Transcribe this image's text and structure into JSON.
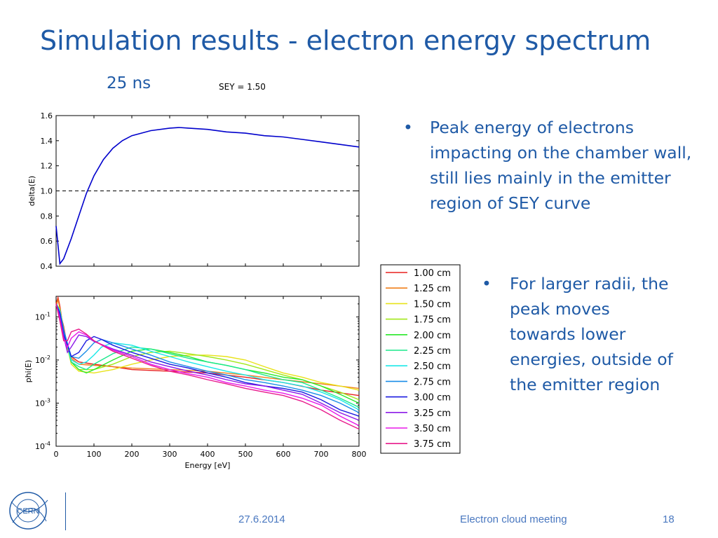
{
  "slide": {
    "title": "Simulation results - electron energy spectrum",
    "subtitle": "25 ns",
    "sey_label": "SEY = 1.50",
    "bullets": [
      "Peak energy of electrons impacting on the chamber wall, still lies mainly in the emitter region of SEY curve",
      "For larger radii, the peak moves towards lower energies, outside of the emitter region"
    ],
    "footer": {
      "date": "27.6.2014",
      "event": "Electron cloud meeting",
      "page": "18",
      "logo_text": "CERN"
    },
    "colors": {
      "title": "#1f5aa6",
      "footer": "#4a78c0"
    }
  },
  "chart_data": [
    {
      "type": "line",
      "ylabel": "delta(E)",
      "xlabel": "",
      "xlim": [
        0,
        800
      ],
      "ylim": [
        0.4,
        1.6
      ],
      "yticks": [
        "0.4",
        "0.6",
        "0.8",
        "1.0",
        "1.2",
        "1.4",
        "1.6"
      ],
      "reference_line": {
        "y": 1.0,
        "style": "dashed"
      },
      "series": [
        {
          "color": "#0000cc",
          "x": [
            0,
            10,
            20,
            40,
            60,
            80,
            100,
            125,
            150,
            175,
            200,
            250,
            300,
            325,
            350,
            400,
            450,
            500,
            550,
            600,
            650,
            700,
            750,
            800
          ],
          "y": [
            0.72,
            0.42,
            0.46,
            0.62,
            0.8,
            0.98,
            1.12,
            1.25,
            1.34,
            1.4,
            1.44,
            1.48,
            1.5,
            1.505,
            1.5,
            1.49,
            1.47,
            1.46,
            1.44,
            1.43,
            1.41,
            1.39,
            1.37,
            1.35
          ]
        }
      ]
    },
    {
      "type": "line",
      "ylabel": "phi(E)",
      "xlabel": "Energy [eV]",
      "xlim": [
        0,
        800
      ],
      "ylim": [
        0.0001,
        0.3
      ],
      "yscale": "log",
      "xticks": [
        "0",
        "100",
        "200",
        "300",
        "400",
        "500",
        "600",
        "700",
        "800"
      ],
      "yticks": [
        {
          "base": "10",
          "exp": "-1",
          "value": 0.1
        },
        {
          "base": "10",
          "exp": "-2",
          "value": 0.01
        },
        {
          "base": "10",
          "exp": "-3",
          "value": 0.001
        },
        {
          "base": "10",
          "exp": "-4",
          "value": 0.0001
        }
      ],
      "legend": {
        "placement": "right"
      },
      "series": [
        {
          "name": "1.00 cm",
          "color": "#e8201e",
          "x": [
            0,
            5,
            10,
            15,
            20,
            30,
            40,
            60,
            100,
            150,
            200,
            300,
            400,
            500,
            600,
            700,
            800
          ],
          "y": [
            0.2,
            0.28,
            0.18,
            0.09,
            0.06,
            0.02,
            0.012,
            0.009,
            0.008,
            0.007,
            0.006,
            0.0055,
            0.005,
            0.004,
            0.003,
            0.002,
            0.0015
          ]
        },
        {
          "name": "1.25 cm",
          "color": "#f07f1a",
          "x": [
            0,
            5,
            10,
            15,
            20,
            30,
            40,
            60,
            100,
            150,
            200,
            300,
            400,
            500,
            600,
            700,
            800
          ],
          "y": [
            0.18,
            0.25,
            0.16,
            0.08,
            0.055,
            0.018,
            0.011,
            0.008,
            0.0075,
            0.007,
            0.0065,
            0.006,
            0.0055,
            0.0045,
            0.0035,
            0.0028,
            0.0022
          ]
        },
        {
          "name": "1.50 cm",
          "color": "#e8e21a",
          "x": [
            0,
            10,
            20,
            40,
            60,
            100,
            150,
            200,
            250,
            300,
            350,
            400,
            450,
            500,
            550,
            600,
            650,
            700,
            750,
            800
          ],
          "y": [
            0.2,
            0.15,
            0.05,
            0.008,
            0.0055,
            0.005,
            0.006,
            0.008,
            0.01,
            0.012,
            0.013,
            0.013,
            0.012,
            0.01,
            0.007,
            0.005,
            0.004,
            0.003,
            0.0025,
            0.002
          ]
        },
        {
          "name": "1.75 cm",
          "color": "#a2e81a",
          "x": [
            0,
            10,
            20,
            40,
            60,
            100,
            150,
            200,
            250,
            300,
            350,
            400,
            450,
            500,
            550,
            600,
            650,
            700,
            750,
            800
          ],
          "y": [
            0.2,
            0.15,
            0.05,
            0.009,
            0.006,
            0.006,
            0.008,
            0.012,
            0.015,
            0.016,
            0.014,
            0.012,
            0.01,
            0.008,
            0.006,
            0.0045,
            0.0035,
            0.0025,
            0.0018,
            0.0012
          ]
        },
        {
          "name": "2.00 cm",
          "color": "#28e828",
          "x": [
            0,
            10,
            20,
            40,
            60,
            80,
            100,
            150,
            200,
            250,
            300,
            350,
            400,
            450,
            500,
            550,
            600,
            650,
            700,
            750,
            800
          ],
          "y": [
            0.2,
            0.14,
            0.05,
            0.009,
            0.006,
            0.005,
            0.006,
            0.01,
            0.016,
            0.018,
            0.015,
            0.012,
            0.009,
            0.0075,
            0.006,
            0.005,
            0.004,
            0.0035,
            0.0025,
            0.0016,
            0.001
          ]
        },
        {
          "name": "2.25 cm",
          "color": "#1ae88c",
          "x": [
            0,
            10,
            20,
            40,
            60,
            80,
            100,
            150,
            200,
            250,
            300,
            350,
            400,
            450,
            500,
            550,
            600,
            650,
            700,
            750,
            800
          ],
          "y": [
            0.2,
            0.14,
            0.05,
            0.009,
            0.007,
            0.006,
            0.008,
            0.014,
            0.02,
            0.018,
            0.014,
            0.011,
            0.009,
            0.0075,
            0.006,
            0.0045,
            0.0035,
            0.003,
            0.002,
            0.0013,
            0.0008
          ]
        },
        {
          "name": "2.50 cm",
          "color": "#1ae8e8",
          "x": [
            0,
            10,
            20,
            40,
            60,
            80,
            100,
            120,
            150,
            200,
            250,
            300,
            350,
            400,
            450,
            500,
            550,
            600,
            650,
            700,
            750,
            800
          ],
          "y": [
            0.2,
            0.14,
            0.05,
            0.01,
            0.008,
            0.009,
            0.013,
            0.02,
            0.025,
            0.022,
            0.016,
            0.012,
            0.009,
            0.007,
            0.0055,
            0.0045,
            0.0035,
            0.003,
            0.0025,
            0.0018,
            0.0012,
            0.0007
          ]
        },
        {
          "name": "2.75 cm",
          "color": "#1a8ce8",
          "x": [
            0,
            10,
            20,
            40,
            60,
            80,
            100,
            120,
            150,
            200,
            250,
            300,
            350,
            400,
            450,
            500,
            550,
            600,
            650,
            700,
            750,
            800
          ],
          "y": [
            0.2,
            0.13,
            0.05,
            0.012,
            0.011,
            0.016,
            0.025,
            0.03,
            0.025,
            0.018,
            0.013,
            0.009,
            0.007,
            0.0055,
            0.0045,
            0.0035,
            0.003,
            0.0025,
            0.002,
            0.0015,
            0.001,
            0.0006
          ]
        },
        {
          "name": "3.00 cm",
          "color": "#1a1ae0",
          "x": [
            0,
            10,
            20,
            40,
            60,
            80,
            100,
            120,
            150,
            200,
            250,
            300,
            350,
            400,
            450,
            500,
            550,
            600,
            650,
            700,
            750,
            800
          ],
          "y": [
            0.2,
            0.12,
            0.04,
            0.012,
            0.015,
            0.028,
            0.035,
            0.03,
            0.022,
            0.015,
            0.011,
            0.008,
            0.0065,
            0.005,
            0.004,
            0.003,
            0.0025,
            0.0022,
            0.0018,
            0.0012,
            0.0007,
            0.0005
          ]
        },
        {
          "name": "3.25 cm",
          "color": "#8c1ae8",
          "x": [
            0,
            10,
            20,
            30,
            40,
            60,
            80,
            100,
            150,
            200,
            250,
            300,
            350,
            400,
            450,
            500,
            550,
            600,
            650,
            700,
            750,
            800
          ],
          "y": [
            0.2,
            0.1,
            0.035,
            0.015,
            0.02,
            0.038,
            0.035,
            0.027,
            0.018,
            0.013,
            0.009,
            0.007,
            0.0055,
            0.0045,
            0.0035,
            0.0028,
            0.0025,
            0.002,
            0.0016,
            0.001,
            0.0006,
            0.0004
          ]
        },
        {
          "name": "3.50 cm",
          "color": "#e81ae8",
          "x": [
            0,
            10,
            20,
            30,
            40,
            60,
            80,
            100,
            150,
            200,
            250,
            300,
            350,
            400,
            450,
            500,
            550,
            600,
            650,
            700,
            750,
            800
          ],
          "y": [
            0.2,
            0.09,
            0.03,
            0.02,
            0.032,
            0.045,
            0.038,
            0.028,
            0.017,
            0.012,
            0.008,
            0.006,
            0.0048,
            0.004,
            0.003,
            0.0025,
            0.002,
            0.0017,
            0.0013,
            0.0009,
            0.0005,
            0.0003
          ]
        },
        {
          "name": "3.75 cm",
          "color": "#e81a8c",
          "x": [
            0,
            10,
            20,
            30,
            40,
            60,
            80,
            100,
            150,
            200,
            250,
            300,
            350,
            400,
            450,
            500,
            550,
            600,
            650,
            700,
            750,
            800
          ],
          "y": [
            0.2,
            0.08,
            0.028,
            0.028,
            0.045,
            0.052,
            0.04,
            0.028,
            0.016,
            0.011,
            0.0075,
            0.0055,
            0.0045,
            0.0035,
            0.0028,
            0.0022,
            0.0018,
            0.0015,
            0.0011,
            0.0007,
            0.0004,
            0.00025
          ]
        }
      ]
    }
  ]
}
